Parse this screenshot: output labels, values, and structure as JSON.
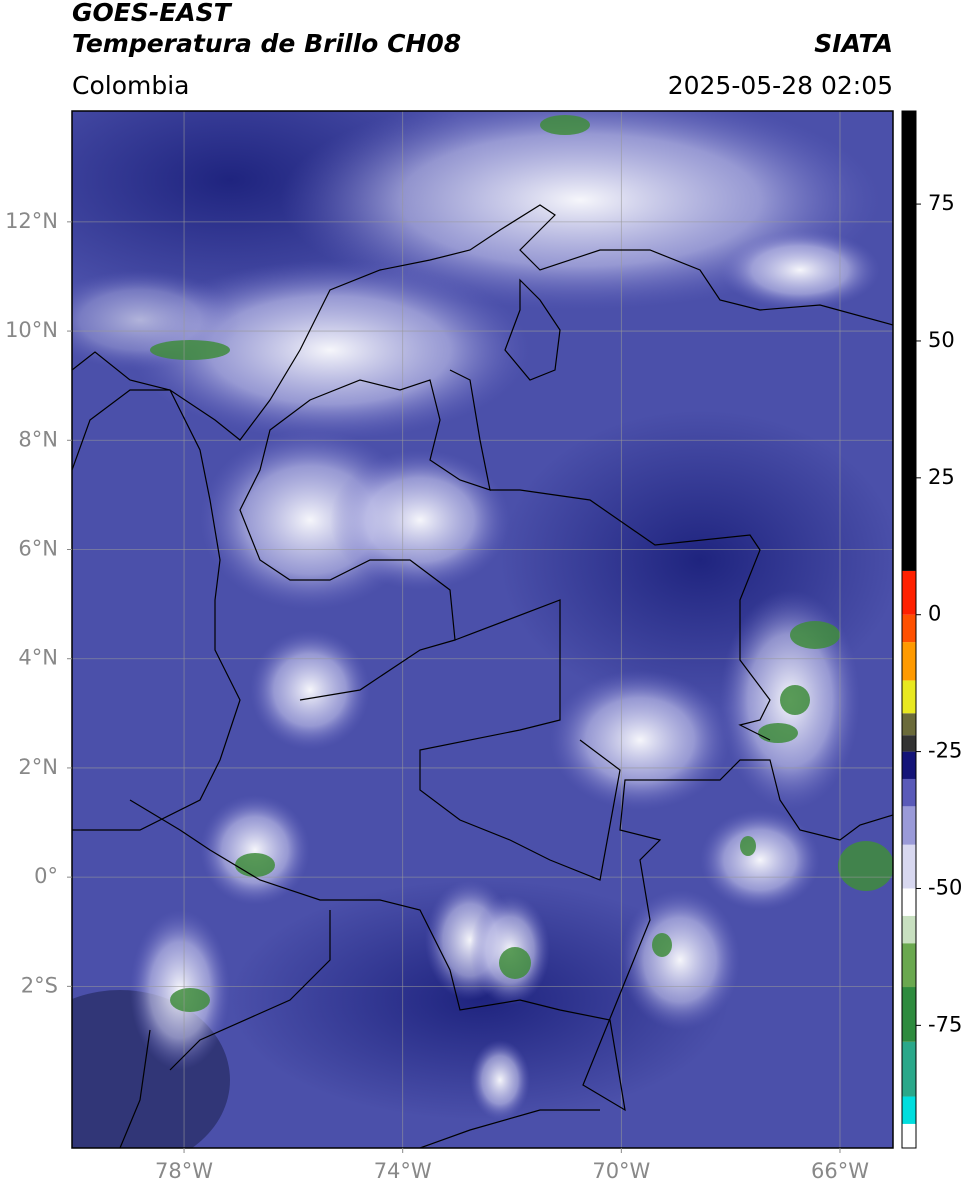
{
  "chart_data": {
    "type": "map",
    "title": "GOES-EAST",
    "subtitle": "Temperatura de Brillo CH08",
    "source": "SIATA",
    "region": "Colombia",
    "datetime": "2025-05-28 02:05",
    "xlim": [
      -80.05,
      -65.03
    ],
    "ylim": [
      -4.96,
      14.03
    ],
    "xticks": [
      {
        "value": -78,
        "label": "78°W"
      },
      {
        "value": -74,
        "label": "74°W"
      },
      {
        "value": -70,
        "label": "70°W"
      },
      {
        "value": -66,
        "label": "66°W"
      }
    ],
    "yticks": [
      {
        "value": 12,
        "label": "12°N"
      },
      {
        "value": 10,
        "label": "10°N"
      },
      {
        "value": 8,
        "label": "8°N"
      },
      {
        "value": 6,
        "label": "6°N"
      },
      {
        "value": 4,
        "label": "4°N"
      },
      {
        "value": 2,
        "label": "2°N"
      },
      {
        "value": 0,
        "label": "0°"
      },
      {
        "value": -2,
        "label": "2°S"
      }
    ],
    "grid": true,
    "colorbar": {
      "lim": [
        -97.4,
        92
      ],
      "ticks": [
        75,
        50,
        25,
        0,
        -25,
        -50,
        -75
      ],
      "segments": [
        {
          "from": -97.4,
          "to": -93,
          "color": "#ffffff"
        },
        {
          "from": -93,
          "to": -88,
          "color": "#00dede"
        },
        {
          "from": -88,
          "to": -78,
          "color": "#2aa88a"
        },
        {
          "from": -78,
          "to": -68,
          "color": "#2e8b3e"
        },
        {
          "from": -68,
          "to": -60,
          "color": "#6aa84f"
        },
        {
          "from": -60,
          "to": -55,
          "color": "#c8e0c0"
        },
        {
          "from": -55,
          "to": -50,
          "color": "#ffffff"
        },
        {
          "from": -50,
          "to": -42,
          "color": "#d8d8f0"
        },
        {
          "from": -42,
          "to": -35,
          "color": "#9a9ad8"
        },
        {
          "from": -35,
          "to": -30,
          "color": "#5a5ab8"
        },
        {
          "from": -30,
          "to": -25,
          "color": "#141478"
        },
        {
          "from": -25,
          "to": -22,
          "color": "#333333"
        },
        {
          "from": -22,
          "to": -18,
          "color": "#6b6b3a"
        },
        {
          "from": -18,
          "to": -12,
          "color": "#e8e820"
        },
        {
          "from": -12,
          "to": -5,
          "color": "#ff9a00"
        },
        {
          "from": -5,
          "to": 0,
          "color": "#ff5000"
        },
        {
          "from": 0,
          "to": 8,
          "color": "#ff2000"
        },
        {
          "from": 8,
          "to": 92,
          "color": "#000000"
        }
      ]
    }
  }
}
